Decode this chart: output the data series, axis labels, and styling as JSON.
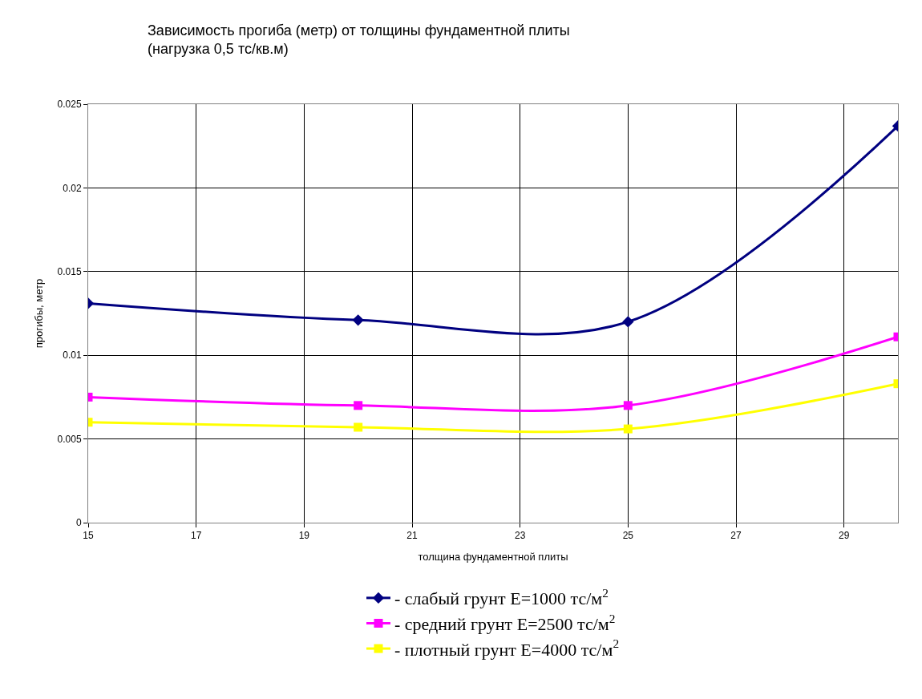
{
  "chart_data": {
    "type": "line",
    "title": "Зависимость прогиба (метр) от толщины фундаментной плиты\n(нагрузка 0,5 тс/кв.м)",
    "xlabel": "толщина фундаментной плиты",
    "ylabel": "прогибы, метр",
    "x": [
      15,
      20,
      25,
      30
    ],
    "series": [
      {
        "name": "- слабый грунт E=1000 тс/м$^{2}$",
        "color": "#000080",
        "marker": "diamond",
        "values": [
          0.0131,
          0.0121,
          0.012,
          0.0237
        ]
      },
      {
        "name": "- средний грунт E=2500 тс/м$^{2}$",
        "color": "#ff00ff",
        "marker": "square",
        "values": [
          0.0075,
          0.007,
          0.007,
          0.0111
        ]
      },
      {
        "name": "- плотный грунт E=4000 тс/м$^{2}$",
        "color": "#ffff00",
        "marker": "square",
        "values": [
          0.006,
          0.0057,
          0.0056,
          0.0083
        ]
      }
    ],
    "xlim": [
      15,
      30
    ],
    "xticks": [
      15,
      17,
      19,
      21,
      23,
      25,
      27,
      29
    ],
    "ylim": [
      0,
      0.025
    ],
    "yticks": [
      0,
      0.005,
      0.01,
      0.015,
      0.02,
      0.025
    ],
    "grid": true,
    "legend": "bottom",
    "line_style": "solid"
  }
}
